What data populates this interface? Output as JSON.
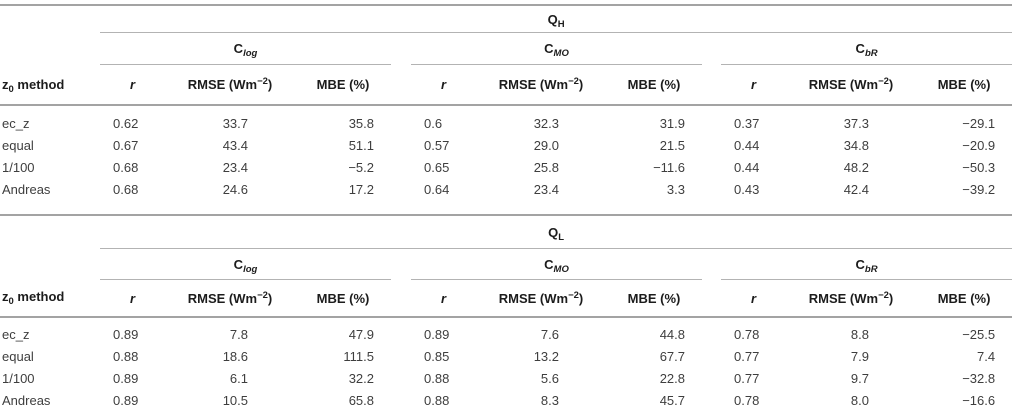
{
  "theme": {
    "bg": "#ffffff",
    "text_color": "#3e3e3e",
    "header_color": "#1c1c1c",
    "rule_color": "#b3b3b3",
    "rule_strong": "#a3a3a3"
  },
  "columns": {
    "r": "r",
    "rmse_pre": "RMSE (Wm",
    "rmse_sup": "−2",
    "rmse_post": ")",
    "mbe": "MBE (%)"
  },
  "method_header": {
    "base": "z",
    "sub": "0",
    "rest": " method"
  },
  "tables": [
    {
      "flux": {
        "base": "Q",
        "sub": "H"
      },
      "groups": [
        {
          "base": "C",
          "sub": "log"
        },
        {
          "base": "C",
          "sub": "MO"
        },
        {
          "base": "C",
          "sub": "bR"
        }
      ],
      "rows": [
        {
          "method": "ec_z",
          "values": [
            "0.62",
            "33.7",
            "35.8",
            "0.6",
            "32.3",
            "31.9",
            "0.37",
            "37.3",
            "−29.1"
          ]
        },
        {
          "method": "equal",
          "values": [
            "0.67",
            "43.4",
            "51.1",
            "0.57",
            "29.0",
            "21.5",
            "0.44",
            "34.8",
            "−20.9"
          ]
        },
        {
          "method": "1/100",
          "values": [
            "0.68",
            "23.4",
            "−5.2",
            "0.65",
            "25.8",
            "−11.6",
            "0.44",
            "48.2",
            "−50.3"
          ]
        },
        {
          "method": "Andreas",
          "values": [
            "0.68",
            "24.6",
            "17.2",
            "0.64",
            "23.4",
            "3.3",
            "0.43",
            "42.4",
            "−39.2"
          ]
        }
      ]
    },
    {
      "flux": {
        "base": "Q",
        "sub": "L"
      },
      "groups": [
        {
          "base": "C",
          "sub": "log"
        },
        {
          "base": "C",
          "sub": "MO"
        },
        {
          "base": "C",
          "sub": "bR"
        }
      ],
      "rows": [
        {
          "method": "ec_z",
          "values": [
            "0.89",
            "7.8",
            "47.9",
            "0.89",
            "7.6",
            "44.8",
            "0.78",
            "8.8",
            "−25.5"
          ]
        },
        {
          "method": "equal",
          "values": [
            "0.88",
            "18.6",
            "111.5",
            "0.85",
            "13.2",
            "67.7",
            "0.77",
            "7.9",
            "7.4"
          ]
        },
        {
          "method": "1/100",
          "values": [
            "0.89",
            "6.1",
            "32.2",
            "0.88",
            "5.6",
            "22.8",
            "0.77",
            "9.7",
            "−32.8"
          ]
        },
        {
          "method": "Andreas",
          "values": [
            "0.89",
            "10.5",
            "65.8",
            "0.88",
            "8.3",
            "45.7",
            "0.78",
            "8.0",
            "−16.6"
          ]
        }
      ]
    }
  ]
}
